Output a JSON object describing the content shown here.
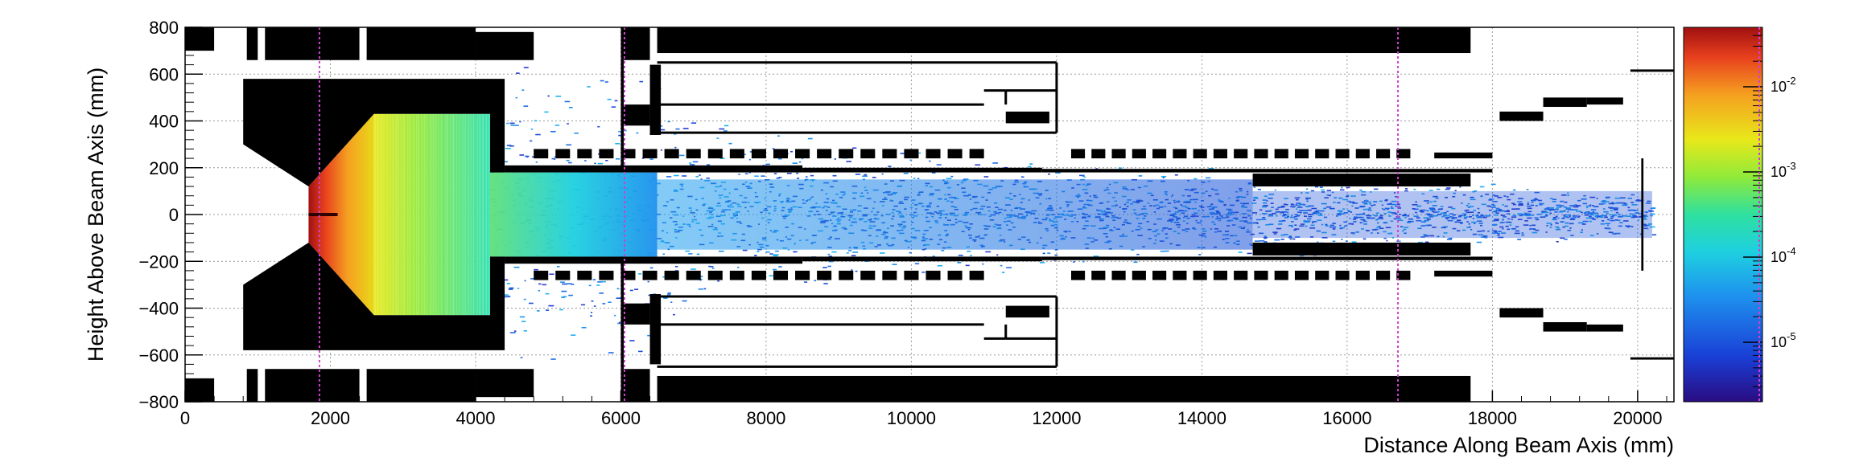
{
  "chart_data": {
    "type": "heatmap",
    "xlabel": "Distance Along Beam Axis (mm)",
    "ylabel": "Height Above Beam Axis (mm)",
    "xlim": [
      0,
      20500
    ],
    "ylim": [
      -800,
      800
    ],
    "x_ticks": [
      0,
      2000,
      4000,
      6000,
      8000,
      10000,
      12000,
      14000,
      16000,
      18000,
      20000
    ],
    "x_tick_labels": [
      "0",
      "2000",
      "4000",
      "6000",
      "8000",
      "10000",
      "12000",
      "14000",
      "16000",
      "18000",
      "20000"
    ],
    "y_ticks": [
      -800,
      -600,
      -400,
      -200,
      0,
      200,
      400,
      600,
      800
    ],
    "y_tick_labels": [
      "−800",
      "−600",
      "−400",
      "−200",
      "0",
      "200",
      "400",
      "600",
      "800"
    ],
    "grid": true,
    "colorbar": {
      "scale": "log",
      "range": [
        2e-06,
        0.05
      ],
      "ticks": [
        0.01,
        0.001,
        0.0001,
        1e-05
      ],
      "tick_bases": [
        "10",
        "10",
        "10",
        "10"
      ],
      "tick_exponents": [
        "-2",
        "-3",
        "-4",
        "-5"
      ]
    },
    "colors": {
      "black": "#000000",
      "magenta": "#d040d0",
      "colormap": [
        "#2a0c82",
        "#1a3fd6",
        "#1e90ee",
        "#1ed0e0",
        "#2fe0a0",
        "#8fea3a",
        "#e8e81a",
        "#f5a020",
        "#e8401e",
        "#a01010"
      ]
    },
    "magenta_lines_x": [
      1850,
      6050,
      16700
    ],
    "intensity_zones": [
      {
        "x": [
          1700,
          2600
        ],
        "y": [
          -120,
          120
        ],
        "level": "highest"
      },
      {
        "x": [
          2600,
          4200
        ],
        "y": [
          -430,
          430
        ],
        "level": "high"
      },
      {
        "x": [
          4200,
          6500
        ],
        "y": [
          -180,
          180
        ],
        "level": "medium"
      },
      {
        "x": [
          6500,
          14700
        ],
        "y": [
          -160,
          160
        ],
        "level": "low"
      },
      {
        "x": [
          14700,
          20500
        ],
        "y": [
          -120,
          120
        ],
        "level": "lowest"
      }
    ]
  }
}
